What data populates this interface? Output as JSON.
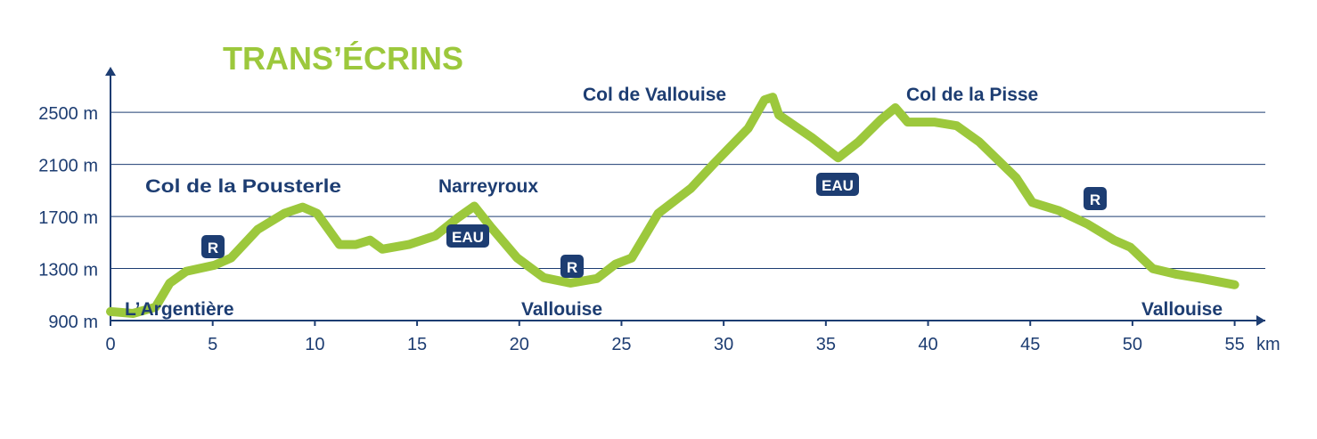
{
  "chart_data": {
    "type": "line",
    "title": "TRANS’ÉCRINS",
    "x_unit": "km",
    "x": [
      0,
      1.1,
      2.2,
      2.9,
      3.7,
      5.1,
      5.9,
      7.2,
      8.5,
      9.4,
      10.1,
      11.2,
      12.0,
      12.7,
      13.3,
      14.6,
      15.9,
      17.0,
      17.8,
      18.6,
      19.9,
      21.2,
      22.5,
      23.8,
      24.7,
      25.5,
      26.8,
      28.4,
      29.5,
      31.2,
      32.0,
      32.4,
      32.7,
      34.3,
      35.6,
      36.6,
      37.7,
      38.4,
      39.0,
      40.3,
      41.4,
      42.5,
      44.3,
      45.1,
      46.4,
      47.8,
      49.1,
      49.9,
      51.0,
      52.1,
      53.4,
      55.0
    ],
    "series": [
      {
        "color": "#9cc83c",
        "values": [
          969,
          955,
          1003,
          1188,
          1278,
          1326,
          1381,
          1600,
          1724,
          1772,
          1724,
          1484,
          1484,
          1518,
          1449,
          1484,
          1552,
          1690,
          1779,
          1621,
          1381,
          1230,
          1188,
          1223,
          1333,
          1381,
          1724,
          1916,
          2102,
          2377,
          2596,
          2617,
          2480,
          2308,
          2150,
          2273,
          2445,
          2535,
          2425,
          2425,
          2397,
          2273,
          1999,
          1807,
          1745,
          1642,
          1518,
          1463,
          1298,
          1257,
          1223,
          1175
        ]
      }
    ],
    "xlim": [
      0,
      56.5
    ],
    "xticks": [
      0,
      5,
      10,
      15,
      20,
      25,
      30,
      35,
      40,
      45,
      50,
      55
    ],
    "ylim": [
      900,
      2850
    ],
    "yticks": [
      {
        "value": 900,
        "label": "900 m"
      },
      {
        "value": 1300,
        "label": "1300 m"
      },
      {
        "value": 1700,
        "label": "1700 m"
      },
      {
        "value": 2100,
        "label": "2100 m"
      },
      {
        "value": 2500,
        "label": "2500 m"
      }
    ],
    "grid": true,
    "annotations": [
      "L’Argentière",
      "Col de la Pousterle",
      "Narreyroux",
      "Vallouise",
      "Col de Vallouise",
      "Col de la Pisse",
      "Vallouise"
    ],
    "badges": [
      "R",
      "EAU",
      "R",
      "EAU",
      "R"
    ]
  }
}
